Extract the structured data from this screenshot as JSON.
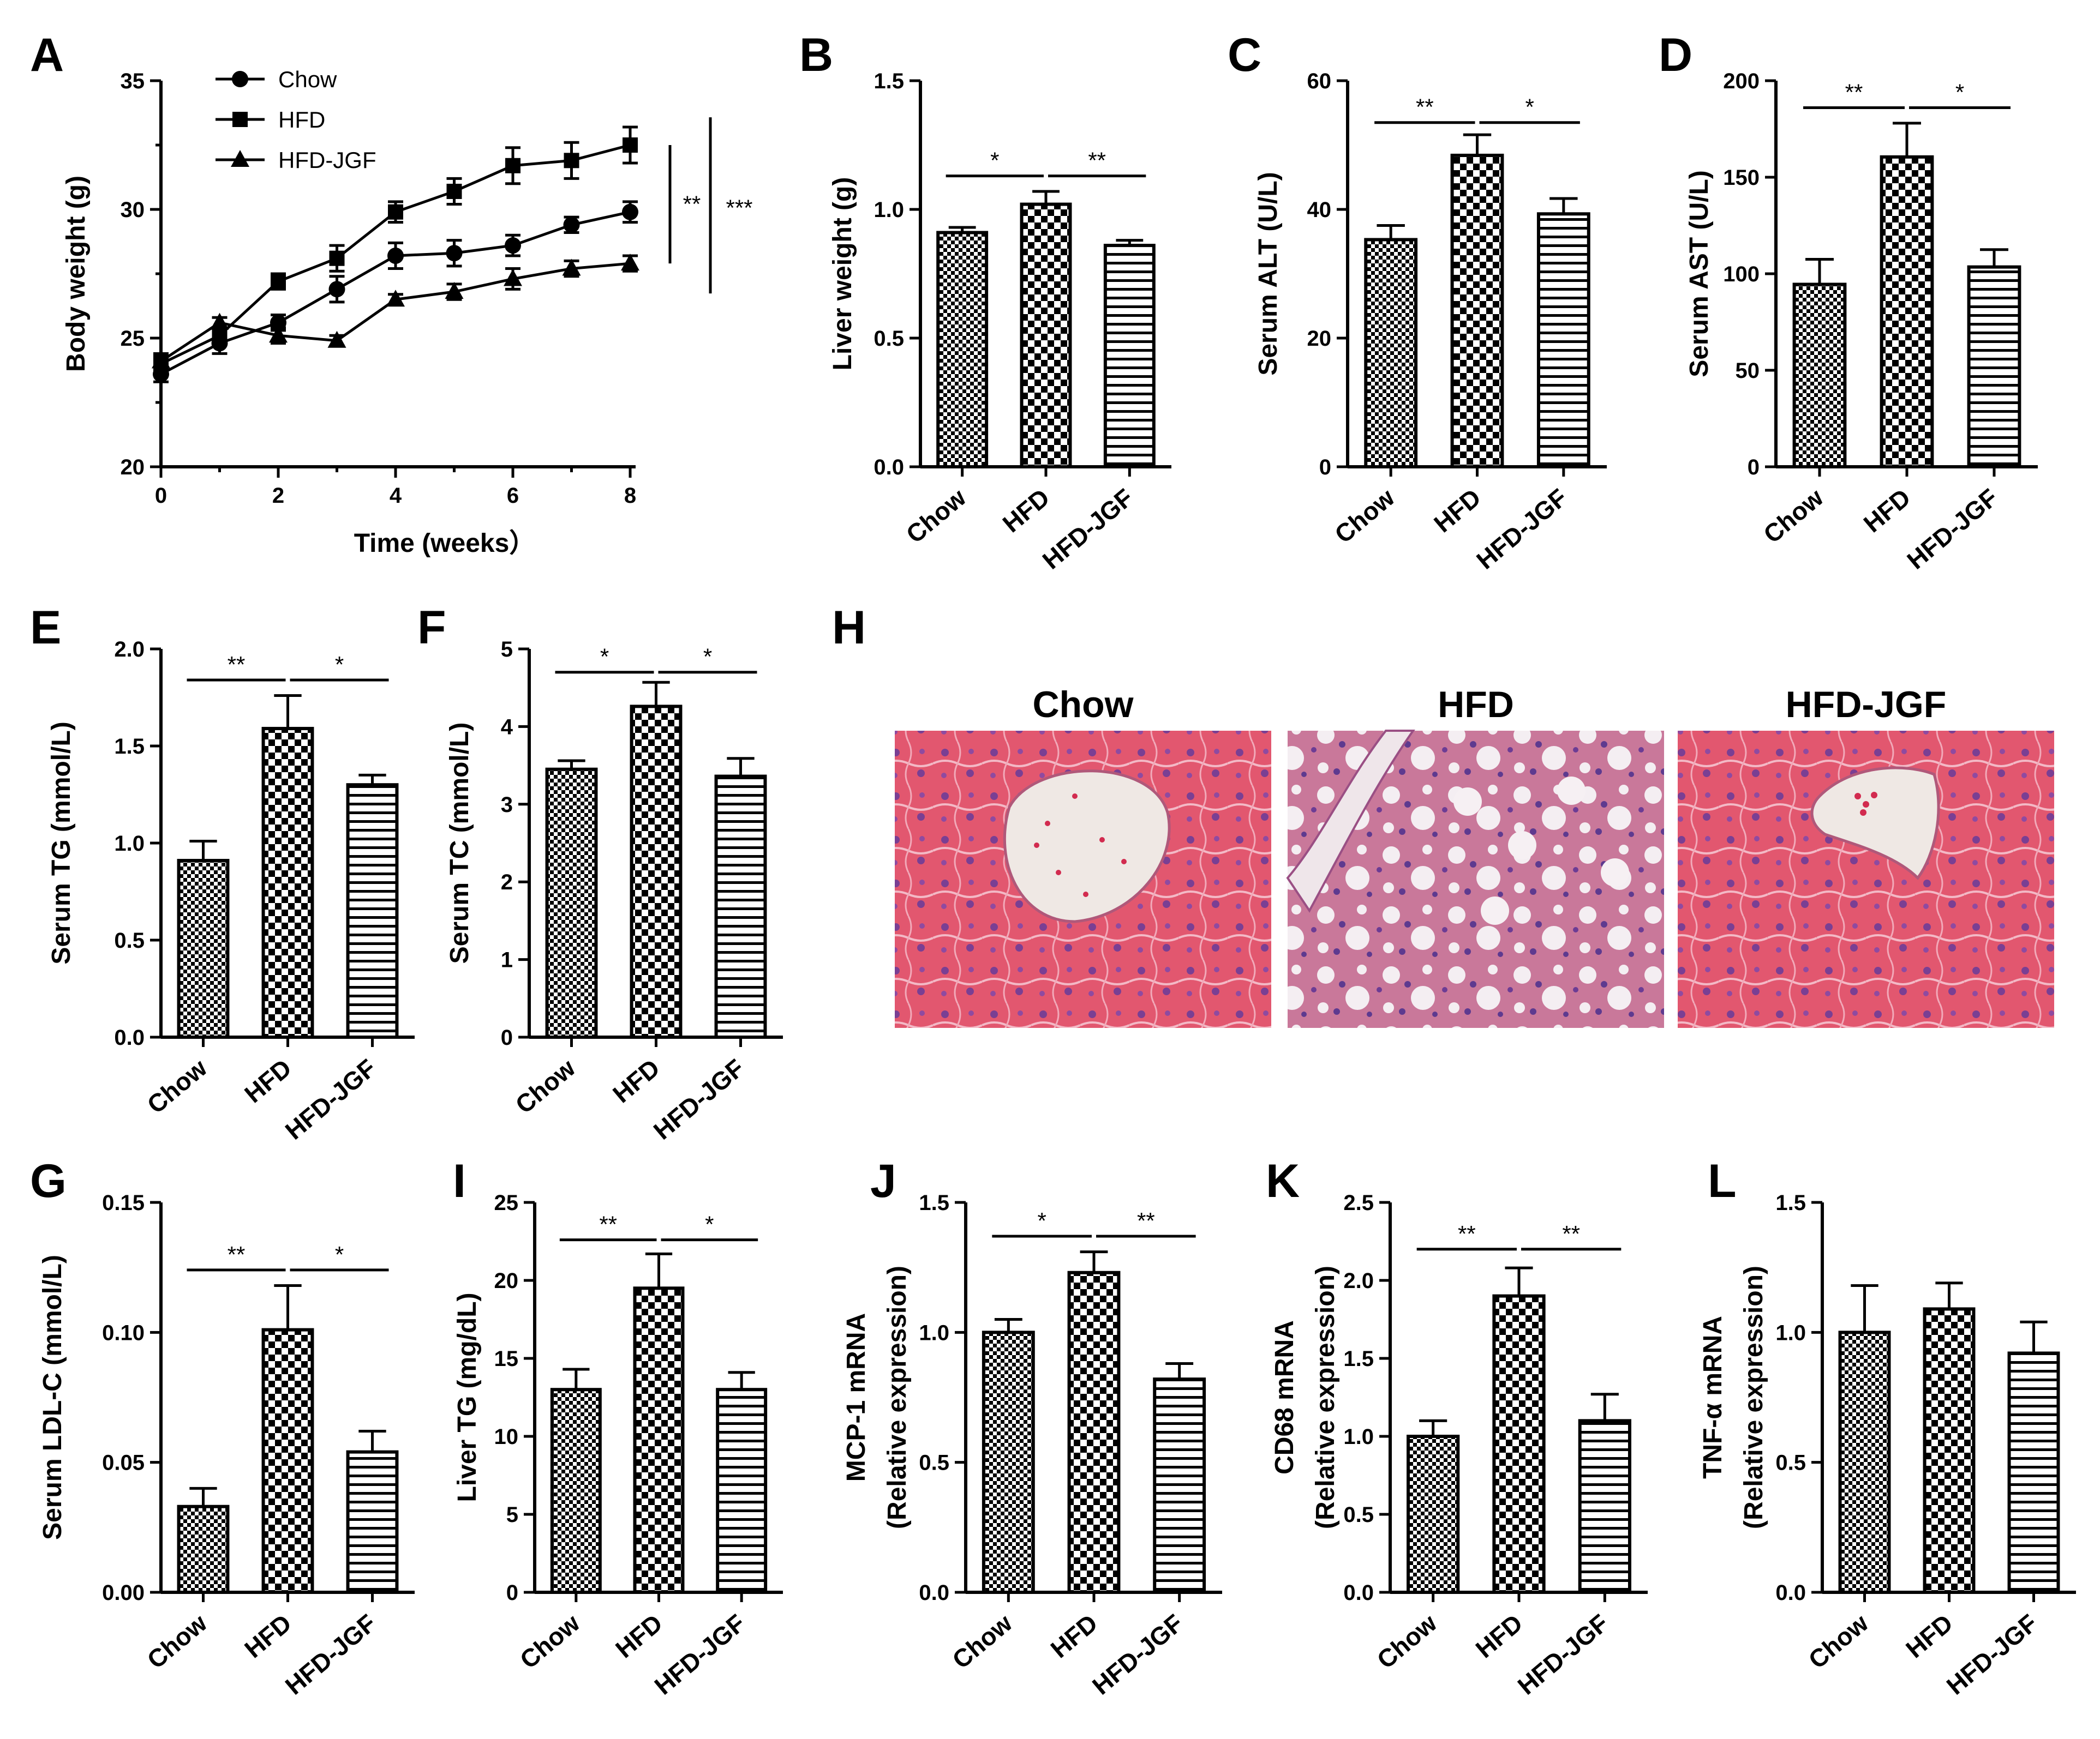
{
  "chart_data": [
    {
      "id": "A",
      "type": "line",
      "panel_label": "A",
      "title": "",
      "xlabel": "Time (weeks）",
      "ylabel": "Body weight (g)",
      "xlim": [
        0,
        8
      ],
      "ylim": [
        20,
        35
      ],
      "xticks": [
        0,
        2,
        4,
        6,
        8
      ],
      "yticks": [
        20,
        25,
        30,
        35
      ],
      "legend": {
        "position": "top-left"
      },
      "series": [
        {
          "name": "Chow",
          "marker": "circle",
          "x": [
            0,
            1,
            2,
            3,
            4,
            5,
            6,
            7,
            8
          ],
          "y": [
            23.6,
            24.8,
            25.6,
            26.9,
            28.2,
            28.3,
            28.6,
            29.4,
            29.9
          ],
          "err": [
            0.3,
            0.4,
            0.3,
            0.5,
            0.5,
            0.5,
            0.4,
            0.3,
            0.4
          ]
        },
        {
          "name": "HFD",
          "marker": "square",
          "x": [
            0,
            1,
            2,
            3,
            4,
            5,
            6,
            7,
            8
          ],
          "y": [
            24.0,
            25.1,
            27.2,
            28.1,
            29.9,
            30.7,
            31.7,
            31.9,
            32.5
          ],
          "err": [
            0.3,
            0.3,
            0.3,
            0.5,
            0.4,
            0.5,
            0.7,
            0.7,
            0.7
          ]
        },
        {
          "name": "HFD-JGF",
          "marker": "triangle",
          "x": [
            0,
            1,
            2,
            3,
            4,
            5,
            6,
            7,
            8
          ],
          "y": [
            24.1,
            25.6,
            25.1,
            24.9,
            26.5,
            26.8,
            27.3,
            27.7,
            27.9
          ],
          "err": [
            0.3,
            0.2,
            0.3,
            0.2,
            0.2,
            0.3,
            0.4,
            0.3,
            0.3
          ]
        }
      ],
      "brackets": [
        {
          "from": 27.9,
          "to": 32.5,
          "label": "**"
        },
        {
          "from": 27.2,
          "to": 32.9,
          "label": "***"
        }
      ]
    },
    {
      "id": "B",
      "type": "bar",
      "panel_label": "B",
      "ylabel": "Liver weight (g)",
      "ylim": [
        0,
        1.5
      ],
      "yticks": [
        "0.0",
        "0.5",
        "1.0",
        "1.5"
      ],
      "categories": [
        "Chow",
        "HFD",
        "HFD-JGF"
      ],
      "values": [
        0.91,
        1.02,
        0.86
      ],
      "errors": [
        0.02,
        0.05,
        0.02
      ],
      "patterns": [
        "checker-small",
        "checker-large",
        "hstripes"
      ],
      "sig": [
        {
          "from": 0,
          "to": 1,
          "label": "*"
        },
        {
          "from": 1,
          "to": 2,
          "label": "**"
        }
      ],
      "sig_y": 1.13
    },
    {
      "id": "C",
      "type": "bar",
      "panel_label": "C",
      "ylabel": "Serum ALT (U/L)",
      "ylim": [
        0,
        60
      ],
      "yticks": [
        "0",
        "20",
        "40",
        "60"
      ],
      "categories": [
        "Chow",
        "HFD",
        "HFD-JGF"
      ],
      "values": [
        35.3,
        48.4,
        39.3
      ],
      "errors": [
        2.2,
        3.2,
        2.4
      ],
      "patterns": [
        "checker-small",
        "checker-large",
        "hstripes"
      ],
      "sig": [
        {
          "from": 0,
          "to": 1,
          "label": "**"
        },
        {
          "from": 1,
          "to": 2,
          "label": "*"
        }
      ],
      "sig_y": 53.5
    },
    {
      "id": "D",
      "type": "bar",
      "panel_label": "D",
      "ylabel": "Serum AST (U/L)",
      "ylim": [
        0,
        200
      ],
      "yticks": [
        "0",
        "50",
        "100",
        "150",
        "200"
      ],
      "categories": [
        "Chow",
        "HFD",
        "HFD-JGF"
      ],
      "values": [
        94.5,
        160.5,
        103.5
      ],
      "errors": [
        13.0,
        17.5,
        9.0
      ],
      "patterns": [
        "checker-small",
        "checker-large",
        "hstripes"
      ],
      "sig": [
        {
          "from": 0,
          "to": 1,
          "label": "**"
        },
        {
          "from": 1,
          "to": 2,
          "label": "*"
        }
      ],
      "sig_y": 186
    },
    {
      "id": "E",
      "type": "bar",
      "panel_label": "E",
      "ylabel": "Serum TG (mmol/L)",
      "ylim": [
        0,
        2.0
      ],
      "yticks": [
        "0.0",
        "0.5",
        "1.0",
        "1.5",
        "2.0"
      ],
      "categories": [
        "Chow",
        "HFD",
        "HFD-JGF"
      ],
      "values": [
        0.91,
        1.59,
        1.3
      ],
      "errors": [
        0.1,
        0.17,
        0.05
      ],
      "patterns": [
        "checker-small",
        "checker-large",
        "hstripes"
      ],
      "sig": [
        {
          "from": 0,
          "to": 1,
          "label": "**"
        },
        {
          "from": 1,
          "to": 2,
          "label": "*"
        }
      ],
      "sig_y": 1.84
    },
    {
      "id": "F",
      "type": "bar",
      "panel_label": "F",
      "ylabel": "Serum TC (mmol/L)",
      "ylim": [
        0,
        5
      ],
      "yticks": [
        "0",
        "1",
        "2",
        "3",
        "4",
        "5"
      ],
      "categories": [
        "Chow",
        "HFD",
        "HFD-JGF"
      ],
      "values": [
        3.45,
        4.26,
        3.36
      ],
      "errors": [
        0.11,
        0.31,
        0.23
      ],
      "patterns": [
        "checker-small",
        "checker-large",
        "hstripes"
      ],
      "sig": [
        {
          "from": 0,
          "to": 1,
          "label": "*"
        },
        {
          "from": 1,
          "to": 2,
          "label": "*"
        }
      ],
      "sig_y": 4.7
    },
    {
      "id": "G",
      "type": "bar",
      "panel_label": "G",
      "ylabel": "Serum LDL-C (mmol/L)",
      "ylim": [
        0,
        0.15
      ],
      "yticks": [
        "0.00",
        "0.05",
        "0.10",
        "0.15"
      ],
      "categories": [
        "Chow",
        "HFD",
        "HFD-JGF"
      ],
      "values": [
        0.033,
        0.101,
        0.054
      ],
      "errors": [
        0.007,
        0.017,
        0.008
      ],
      "patterns": [
        "checker-small",
        "checker-large",
        "hstripes"
      ],
      "sig": [
        {
          "from": 0,
          "to": 1,
          "label": "**"
        },
        {
          "from": 1,
          "to": 2,
          "label": "*"
        }
      ],
      "sig_y": 0.124
    },
    {
      "id": "I",
      "type": "bar",
      "panel_label": "I",
      "ylabel": "Liver TG (mg/dL)",
      "ylim": [
        0,
        25
      ],
      "yticks": [
        "0",
        "5",
        "10",
        "15",
        "20",
        "25"
      ],
      "categories": [
        "Chow",
        "HFD",
        "HFD-JGF"
      ],
      "values": [
        13.0,
        19.5,
        13.0
      ],
      "errors": [
        1.3,
        2.2,
        1.1
      ],
      "patterns": [
        "checker-small",
        "checker-large",
        "hstripes"
      ],
      "sig": [
        {
          "from": 0,
          "to": 1,
          "label": "**"
        },
        {
          "from": 1,
          "to": 2,
          "label": "*"
        }
      ],
      "sig_y": 22.6
    },
    {
      "id": "J",
      "type": "bar",
      "panel_label": "J",
      "ylabel": "MCP-1 mRNA",
      "ylabel2": "(Relative expression)",
      "ylim": [
        0,
        1.5
      ],
      "yticks": [
        "0.0",
        "0.5",
        "1.0",
        "1.5"
      ],
      "categories": [
        "Chow",
        "HFD",
        "HFD-JGF"
      ],
      "values": [
        1.0,
        1.23,
        0.82
      ],
      "errors": [
        0.05,
        0.08,
        0.06
      ],
      "patterns": [
        "checker-small",
        "checker-large",
        "hstripes"
      ],
      "sig": [
        {
          "from": 0,
          "to": 1,
          "label": "*"
        },
        {
          "from": 1,
          "to": 2,
          "label": "**"
        }
      ],
      "sig_y": 1.37
    },
    {
      "id": "K",
      "type": "bar",
      "panel_label": "K",
      "ylabel": "CD68 mRNA",
      "ylabel2": "(Relative expression)",
      "ylim": [
        0,
        2.5
      ],
      "yticks": [
        "0.0",
        "0.5",
        "1.0",
        "1.5",
        "2.0",
        "2.5"
      ],
      "categories": [
        "Chow",
        "HFD",
        "HFD-JGF"
      ],
      "values": [
        1.0,
        1.9,
        1.1
      ],
      "errors": [
        0.1,
        0.18,
        0.17
      ],
      "patterns": [
        "checker-small",
        "checker-large",
        "hstripes"
      ],
      "sig": [
        {
          "from": 0,
          "to": 1,
          "label": "**"
        },
        {
          "from": 1,
          "to": 2,
          "label": "**"
        }
      ],
      "sig_y": 2.2
    },
    {
      "id": "L",
      "type": "bar",
      "panel_label": "L",
      "ylabel": "TNF-α mRNA",
      "ylabel2": "(Relative expression)",
      "ylim": [
        0,
        1.5
      ],
      "yticks": [
        "0.0",
        "0.5",
        "1.0",
        "1.5"
      ],
      "categories": [
        "Chow",
        "HFD",
        "HFD-JGF"
      ],
      "values": [
        1.0,
        1.09,
        0.92
      ],
      "errors": [
        0.18,
        0.1,
        0.12
      ],
      "patterns": [
        "checker-small",
        "checker-large",
        "hstripes"
      ],
      "sig": [],
      "sig_y": 0
    }
  ],
  "histology": {
    "panel_label": "H",
    "titles": [
      "Chow",
      "HFD",
      "HFD-JGF"
    ]
  }
}
